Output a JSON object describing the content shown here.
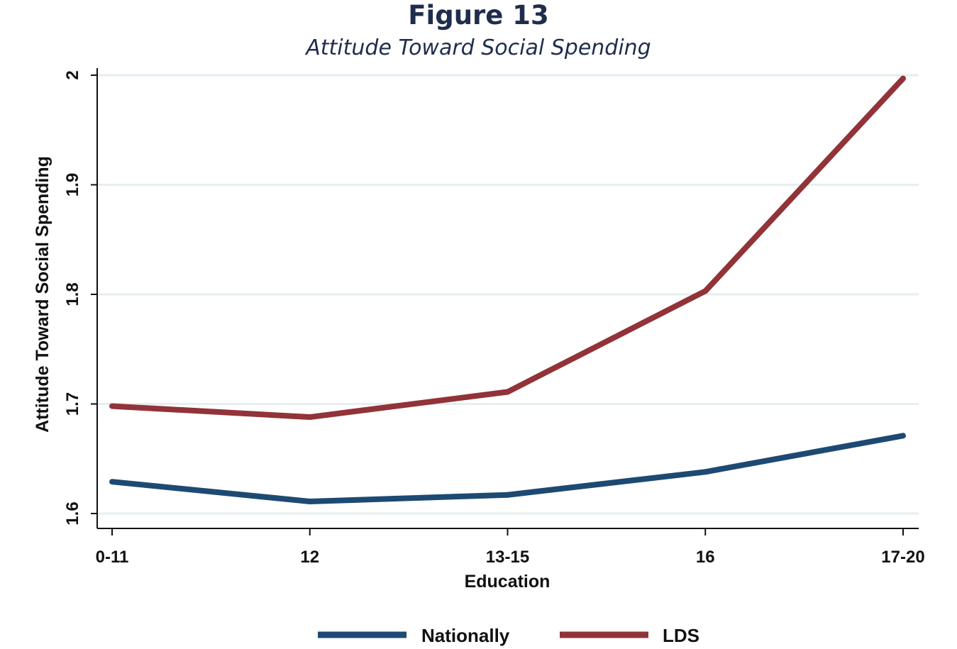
{
  "figure": {
    "title": "Figure 13",
    "subtitle": "Attitude Toward Social Spending"
  },
  "colors": {
    "nationally": "#1d4a73",
    "lds": "#913338",
    "gridline": "#e6eef0",
    "axis": "#111111",
    "title": "#1f2d4d"
  },
  "chart_data": {
    "type": "line",
    "xlabel": "Education",
    "ylabel": "Attitude Toward Social Spending",
    "categories": [
      "0-11",
      "12",
      "13-15",
      "16",
      "17-20"
    ],
    "ylim": [
      1.6,
      2.0
    ],
    "yticks": [
      "1.6",
      "1.7",
      "1.8",
      "1.9",
      "2"
    ],
    "grid": true,
    "legend_position": "bottom",
    "series": [
      {
        "name": "Nationally",
        "color": "#1d4a73",
        "values": [
          1.629,
          1.611,
          1.617,
          1.638,
          1.671
        ]
      },
      {
        "name": "LDS",
        "color": "#913338",
        "values": [
          1.698,
          1.688,
          1.711,
          1.803,
          1.997
        ]
      }
    ]
  }
}
